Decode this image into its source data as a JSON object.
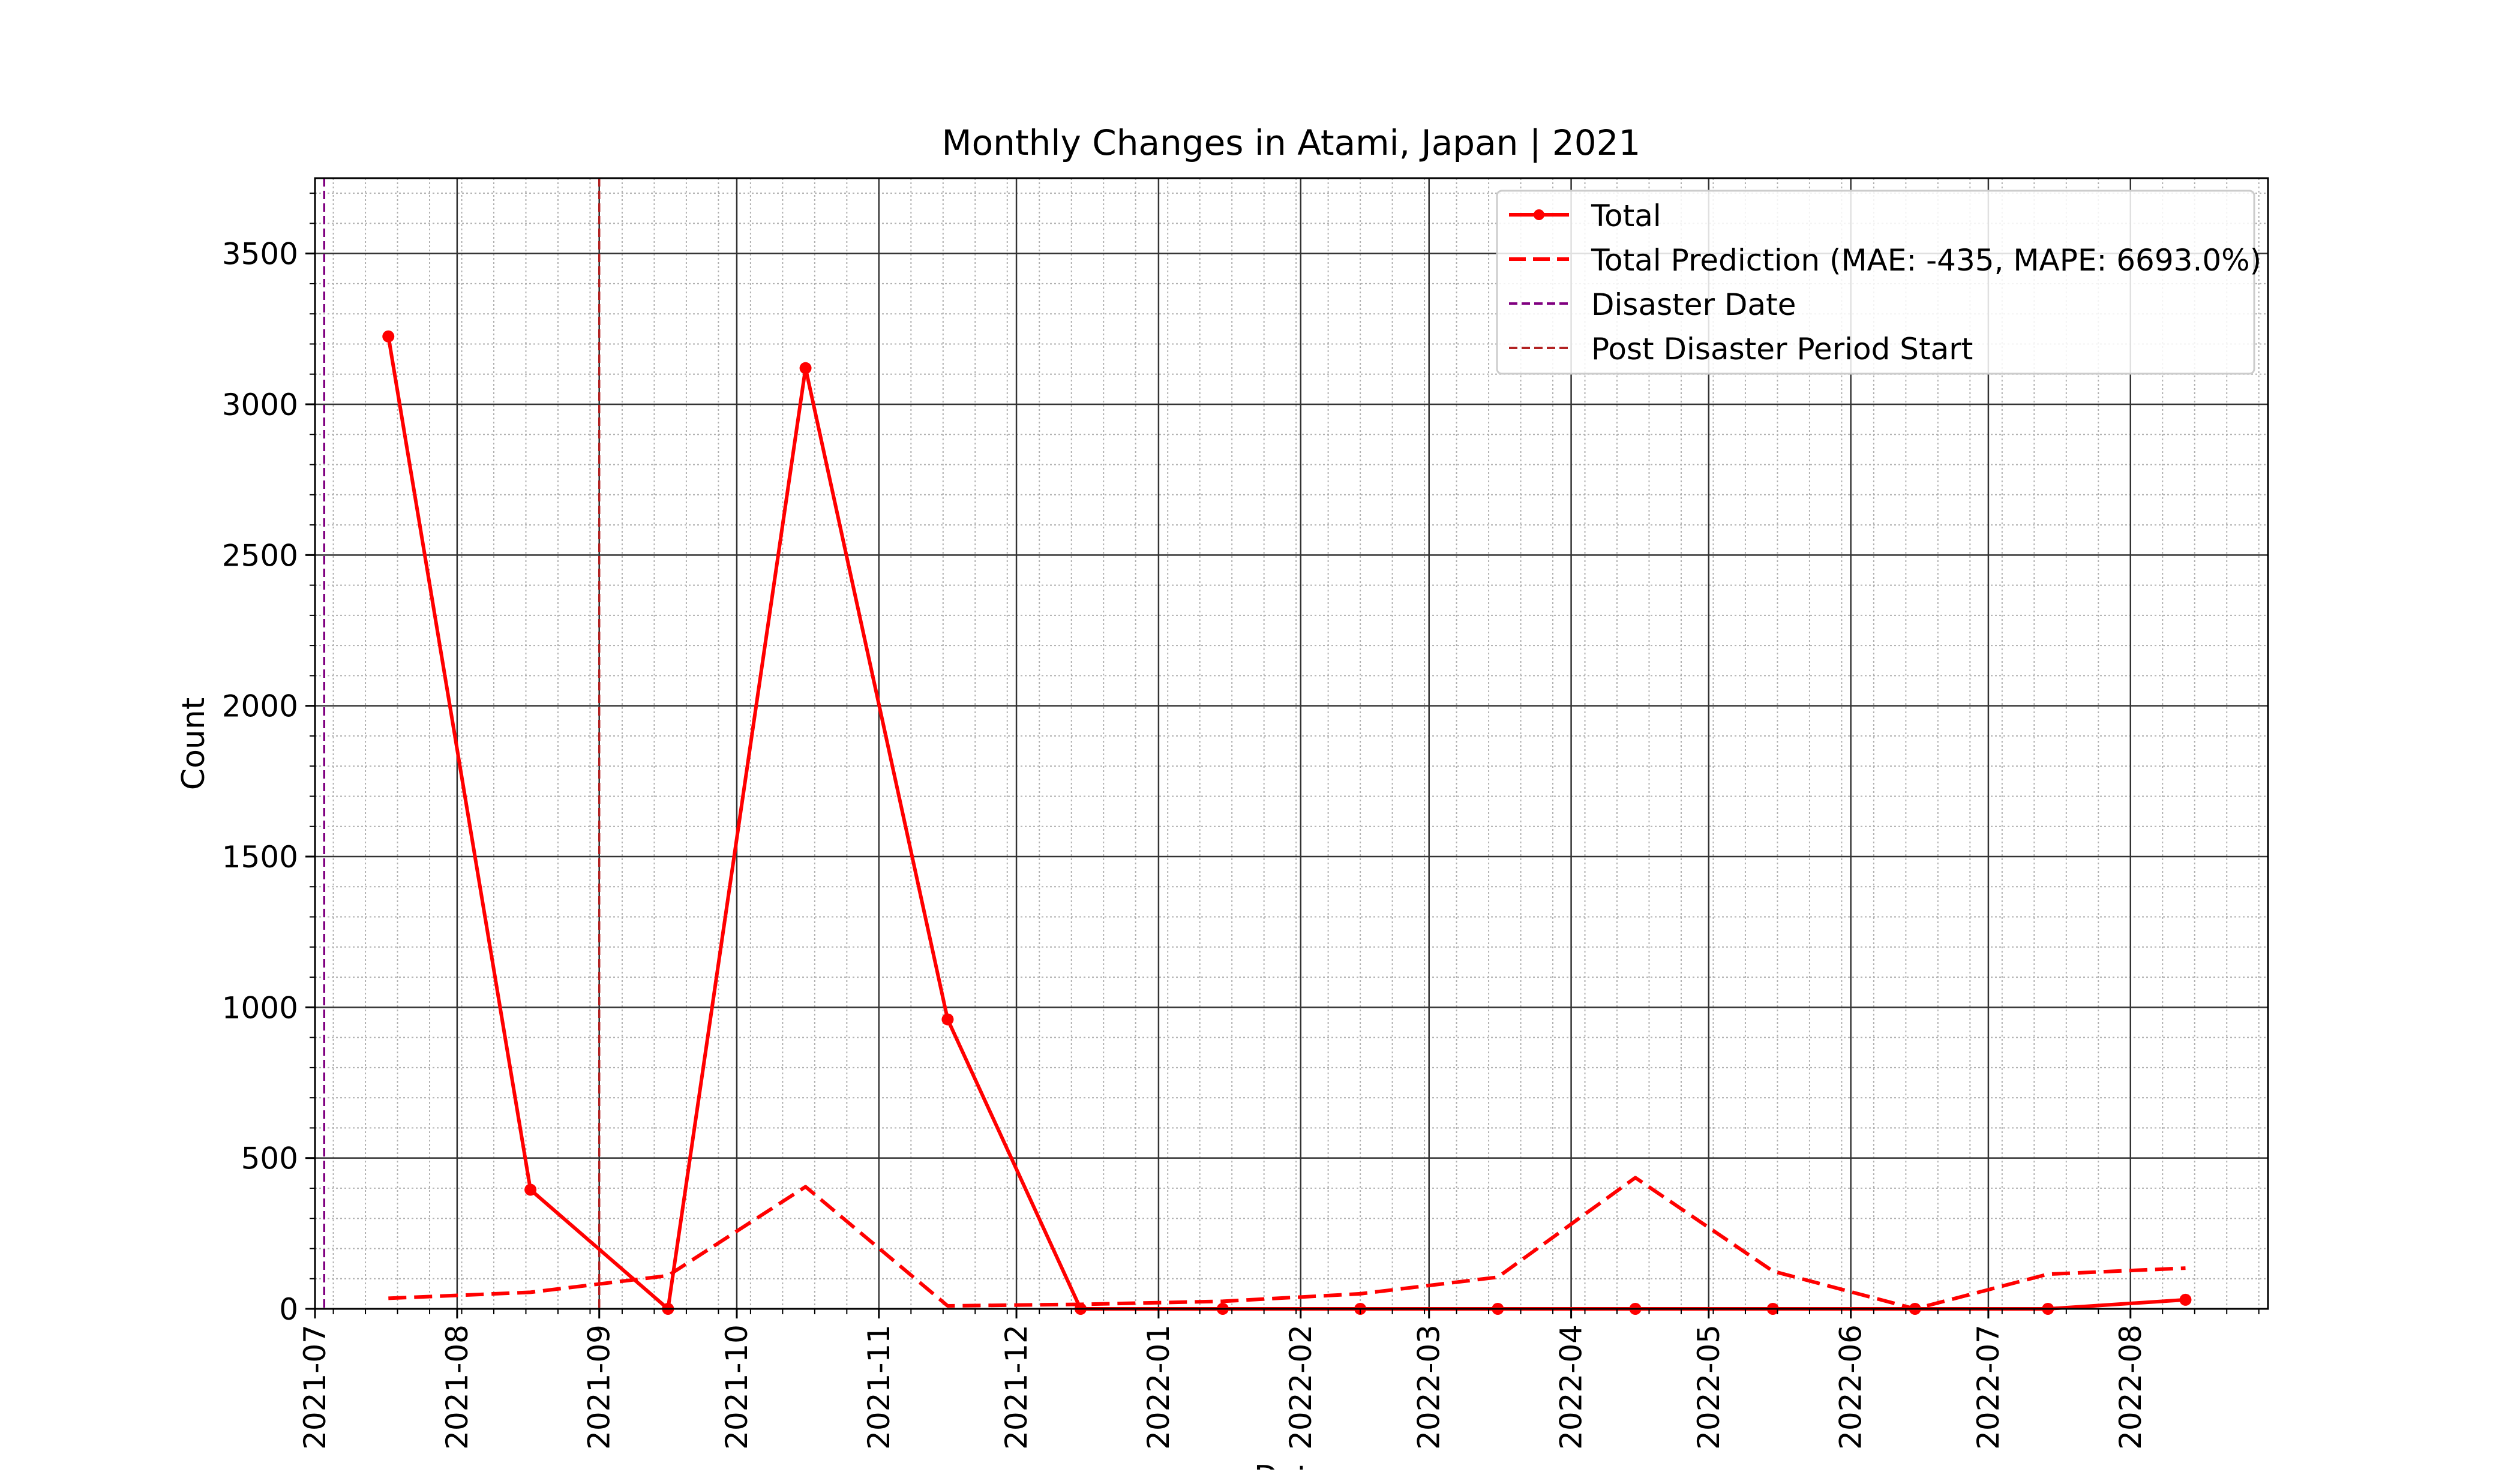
{
  "chart_data": {
    "type": "line",
    "title": "Monthly Changes in Atami, Japan | 2021",
    "xlabel": "Date",
    "ylabel": "Count",
    "xlim": [
      "2021-07-01",
      "2022-08-31"
    ],
    "ylim": [
      0,
      3750
    ],
    "x_ticks": [
      "2021-07",
      "2021-08",
      "2021-09",
      "2021-10",
      "2021-11",
      "2021-12",
      "2022-01",
      "2022-02",
      "2022-03",
      "2022-04",
      "2022-05",
      "2022-06",
      "2022-07",
      "2022-08"
    ],
    "y_ticks": [
      0,
      500,
      1000,
      1500,
      2000,
      2500,
      3000,
      3500
    ],
    "grid": "major and minor",
    "legend_position": "top-right",
    "series": [
      {
        "name": "Total",
        "color": "#ff0000",
        "style": "solid",
        "markers": true,
        "points": [
          {
            "x": "2021-07-17",
            "y": 3225
          },
          {
            "x": "2021-08-17",
            "y": 395
          },
          {
            "x": "2021-09-16",
            "y": 0
          },
          {
            "x": "2021-10-16",
            "y": 3120
          },
          {
            "x": "2021-11-16",
            "y": 960
          },
          {
            "x": "2021-12-15",
            "y": 0
          },
          {
            "x": "2022-01-15",
            "y": 0
          },
          {
            "x": "2022-02-14",
            "y": 0
          },
          {
            "x": "2022-03-16",
            "y": 0
          },
          {
            "x": "2022-04-15",
            "y": 0
          },
          {
            "x": "2022-05-15",
            "y": 0
          },
          {
            "x": "2022-06-15",
            "y": 0
          },
          {
            "x": "2022-07-14",
            "y": 0
          },
          {
            "x": "2022-08-13",
            "y": 30
          }
        ]
      },
      {
        "name": "Total Prediction (MAE: -435, MAPE: 6693.0%)",
        "color": "#ff0000",
        "style": "dashed",
        "markers": false,
        "points": [
          {
            "x": "2021-07-17",
            "y": 35
          },
          {
            "x": "2021-08-17",
            "y": 55
          },
          {
            "x": "2021-09-16",
            "y": 110
          },
          {
            "x": "2021-10-16",
            "y": 405
          },
          {
            "x": "2021-11-16",
            "y": 10
          },
          {
            "x": "2021-12-15",
            "y": 15
          },
          {
            "x": "2022-01-15",
            "y": 25
          },
          {
            "x": "2022-02-14",
            "y": 50
          },
          {
            "x": "2022-03-16",
            "y": 105
          },
          {
            "x": "2022-04-15",
            "y": 435
          },
          {
            "x": "2022-05-15",
            "y": 125
          },
          {
            "x": "2022-06-15",
            "y": 0
          },
          {
            "x": "2022-07-14",
            "y": 115
          },
          {
            "x": "2022-08-13",
            "y": 135
          }
        ]
      }
    ],
    "vlines": [
      {
        "name": "Disaster Date",
        "x": "2021-07-03",
        "color": "#800080",
        "style": "dashed"
      },
      {
        "name": "Post Disaster Period Start",
        "x": "2021-09-01",
        "color": "#b22222",
        "style": "dashed"
      }
    ]
  }
}
